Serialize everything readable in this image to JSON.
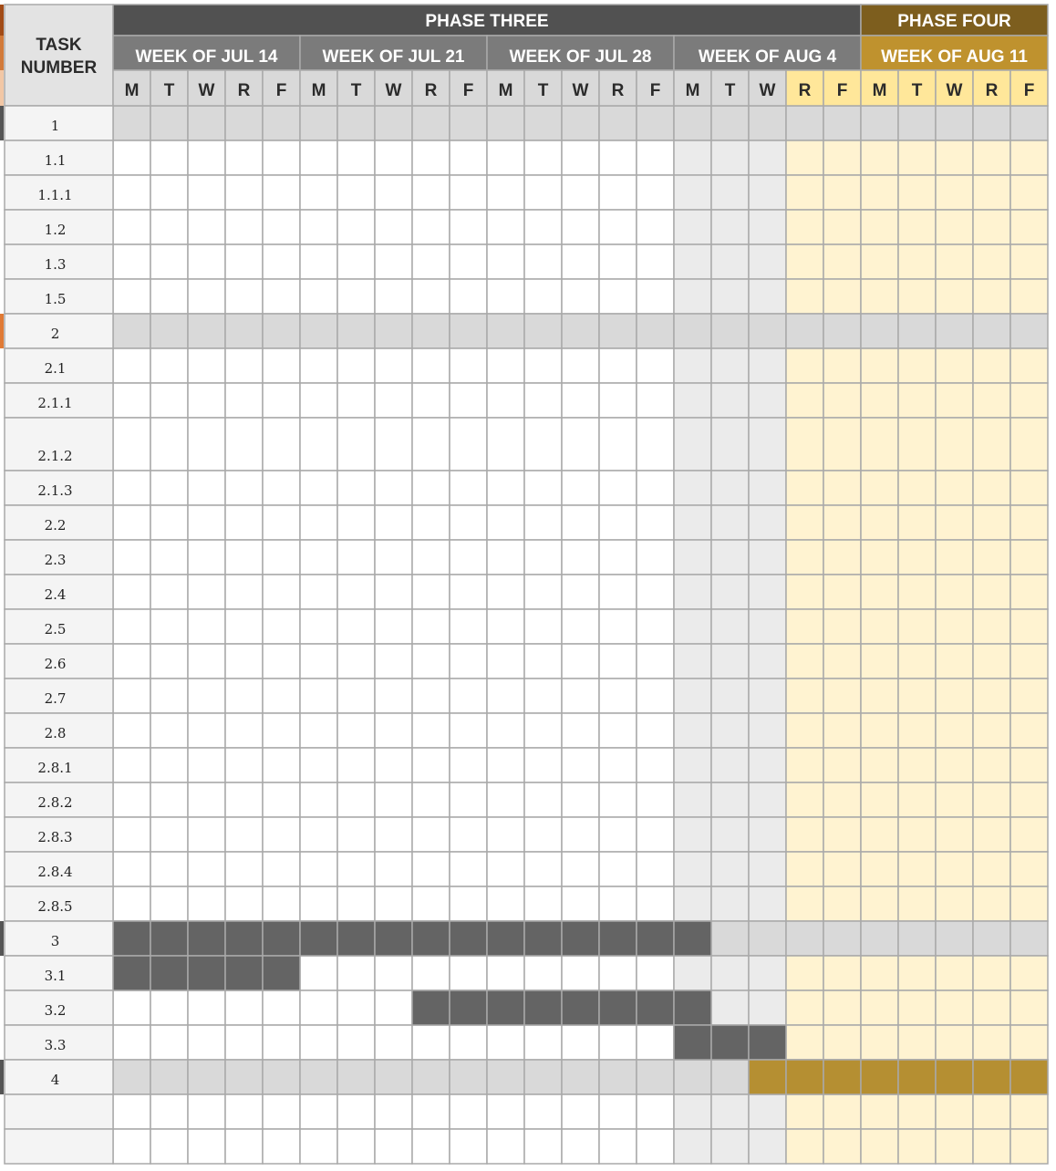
{
  "header": {
    "task_number_label_line1": "TASK",
    "task_number_label_line2": "NUMBER",
    "phases": [
      {
        "label": "PHASE THREE",
        "weeks": 4,
        "color": "#515151"
      },
      {
        "label": "PHASE FOUR",
        "weeks": 1,
        "color": "#7d5e1e"
      }
    ],
    "weeks": [
      {
        "label": "WEEK OF JUL 14",
        "color": "#7b7b7b"
      },
      {
        "label": "WEEK OF JUL 21",
        "color": "#7b7b7b"
      },
      {
        "label": "WEEK OF JUL 28",
        "color": "#7b7b7b"
      },
      {
        "label": "WEEK OF AUG 4",
        "color": "#7b7b7b"
      },
      {
        "label": "WEEK OF AUG 11",
        "color": "#bf922e"
      }
    ],
    "day_letters": [
      "M",
      "T",
      "W",
      "R",
      "F"
    ]
  },
  "rows": [
    {
      "task": "1",
      "summary": true
    },
    {
      "task": "1.1"
    },
    {
      "task": "1.1.1"
    },
    {
      "task": "1.2"
    },
    {
      "task": "1.3"
    },
    {
      "task": "1.5"
    },
    {
      "task": "2",
      "summary": true
    },
    {
      "task": "2.1"
    },
    {
      "task": "2.1.1"
    },
    {
      "task": "2.1.2",
      "tall": true
    },
    {
      "task": "2.1.3"
    },
    {
      "task": "2.2"
    },
    {
      "task": "2.3"
    },
    {
      "task": "2.4"
    },
    {
      "task": "2.5"
    },
    {
      "task": "2.6"
    },
    {
      "task": "2.7"
    },
    {
      "task": "2.8"
    },
    {
      "task": "2.8.1"
    },
    {
      "task": "2.8.2"
    },
    {
      "task": "2.8.3"
    },
    {
      "task": "2.8.4"
    },
    {
      "task": "2.8.5"
    },
    {
      "task": "3",
      "summary": true
    },
    {
      "task": "3.1"
    },
    {
      "task": "3.2"
    },
    {
      "task": "3.3"
    },
    {
      "task": "4",
      "summary": true
    },
    {
      "task": ""
    },
    {
      "task": ""
    }
  ],
  "bars": [
    {
      "task": "3",
      "start_day": 0,
      "end_day": 15,
      "color": "#646464"
    },
    {
      "task": "3.1",
      "start_day": 0,
      "end_day": 4,
      "color": "#646464"
    },
    {
      "task": "3.2",
      "start_day": 8,
      "end_day": 15,
      "color": "#646464"
    },
    {
      "task": "3.3",
      "start_day": 15,
      "end_day": 17,
      "color": "#646464"
    },
    {
      "task": "4",
      "start_day": 17,
      "end_day": 24,
      "color": "#b58f32"
    }
  ],
  "shading": {
    "phase_four_starts_day": 18,
    "off_days": [
      15,
      16,
      17
    ],
    "colors": {
      "summary_row": "#d9d9d9",
      "normal_cell": "#ffffff",
      "off_cell": "#ebebeb",
      "phase_four_cell": "#fff3d1",
      "phase_four_day_header": "#ffe79a",
      "day_header": "#d9d9d9",
      "grid_line": "#a9a9a9"
    }
  }
}
